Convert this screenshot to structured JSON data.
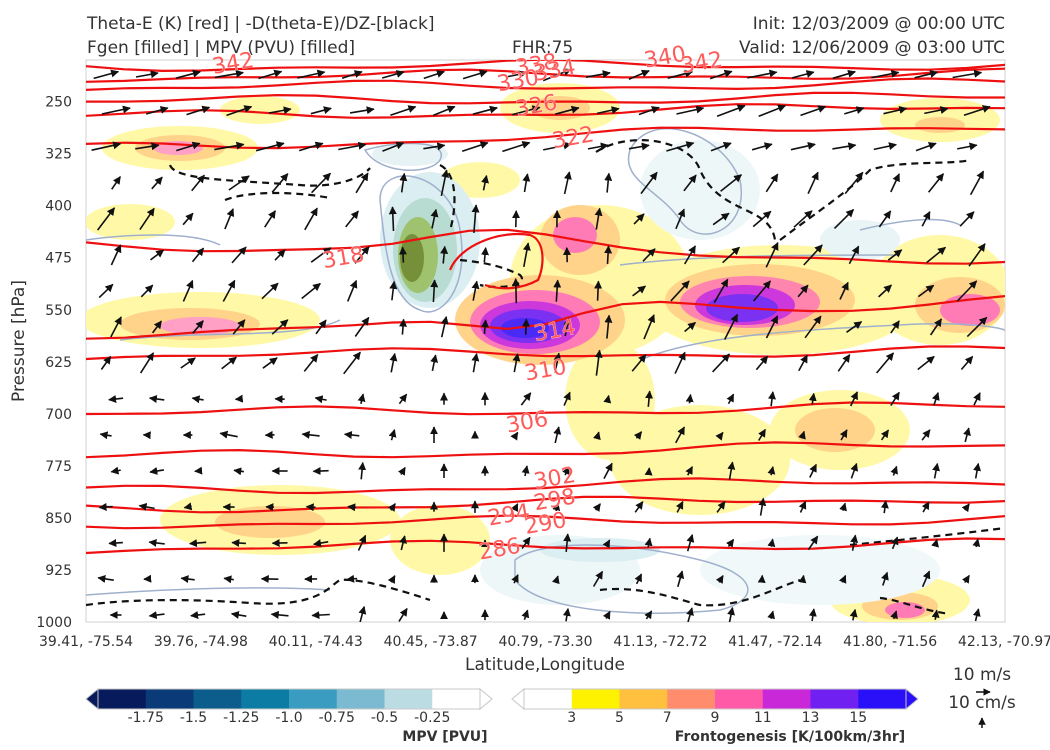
{
  "header": {
    "title_line1_left": "Theta-E (K) [red] | -D(theta-E)/DZ-[black]",
    "title_line2_left": "Fgen [filled] | MPV (PVU) [filled]",
    "fhr": "FHR:75",
    "init": "Init: 12/03/2009 @ 00:00 UTC",
    "valid": "Valid: 12/06/2009 @ 03:00 UTC"
  },
  "chart_data": {
    "type": "cross-section",
    "title": "Theta-E (K) [red] | -D(theta-E)/DZ-[black]",
    "subtitle": "Fgen [filled] | MPV (PVU) [filled]",
    "xlabel": "Latitude,Longitude",
    "ylabel": "Pressure [hPa]",
    "x_ticks": [
      "39.41, -75.54",
      "39.76, -74.98",
      "40.11, -74.43",
      "40.45, -73.87",
      "40.79, -73.30",
      "41.13, -72.72",
      "41.47, -72.14",
      "41.80, -71.56",
      "42.13, -70.97"
    ],
    "y_ticks": [
      250,
      325,
      400,
      475,
      550,
      625,
      700,
      775,
      850,
      925,
      1000
    ],
    "ylim": [
      1000,
      190
    ],
    "y_inverted": true,
    "theta_e_contours": [
      {
        "value": 342,
        "y_left": 199,
        "y_right": 197
      },
      {
        "value": 338,
        "y_left": 214,
        "y_right": 210
      },
      {
        "value": 334,
        "y_left": 230,
        "y_right": 224
      },
      {
        "value": 330,
        "y_left": 250,
        "y_right": 244
      },
      {
        "value": 326,
        "y_left": 272,
        "y_right": 258
      },
      {
        "value": 322,
        "y_left": 318,
        "y_right": 283
      },
      {
        "value": 318,
        "y_left": 456,
        "y_right": 478
      },
      {
        "value": 314,
        "y_left": 585,
        "y_right": 537
      },
      {
        "value": 310,
        "y_left": 616,
        "y_right": 610
      },
      {
        "value": 306,
        "y_left": 700,
        "y_right": 690
      },
      {
        "value": 302,
        "y_left": 763,
        "y_right": 745
      },
      {
        "value": 298,
        "y_left": 812,
        "y_right": 796
      },
      {
        "value": 294,
        "y_left": 838,
        "y_right": 820
      },
      {
        "value": 290,
        "y_left": 858,
        "y_right": 852
      },
      {
        "value": 286,
        "y_left": 894,
        "y_right": 887
      }
    ],
    "contour_labels": [
      {
        "text": "342",
        "x": 0.16,
        "p": 195
      },
      {
        "text": "338",
        "x": 0.49,
        "p": 197
      },
      {
        "text": "334",
        "x": 0.51,
        "p": 205
      },
      {
        "text": "340",
        "x": 0.63,
        "p": 186
      },
      {
        "text": "342",
        "x": 0.67,
        "p": 194
      },
      {
        "text": "330",
        "x": 0.47,
        "p": 220
      },
      {
        "text": "326",
        "x": 0.49,
        "p": 256
      },
      {
        "text": "322",
        "x": 0.53,
        "p": 302
      },
      {
        "text": "318",
        "x": 0.28,
        "p": 475
      },
      {
        "text": "314",
        "x": 0.51,
        "p": 580
      },
      {
        "text": "310",
        "x": 0.5,
        "p": 637
      },
      {
        "text": "306",
        "x": 0.48,
        "p": 712
      },
      {
        "text": "302",
        "x": 0.51,
        "p": 793
      },
      {
        "text": "298",
        "x": 0.51,
        "p": 824
      },
      {
        "text": "294",
        "x": 0.46,
        "p": 846
      },
      {
        "text": "290",
        "x": 0.5,
        "p": 858
      },
      {
        "text": "286",
        "x": 0.45,
        "p": 895
      }
    ],
    "frontogenesis_colorbar": {
      "label": "Frontogenesis [K/100km/3hr]",
      "ticks": [
        "3",
        "5",
        "7",
        "9",
        "11",
        "13",
        "15"
      ],
      "colors": [
        "#ffffff",
        "#fff200",
        "#ffc040",
        "#ff8c6c",
        "#ff5aa8",
        "#c828d8",
        "#7020f0",
        "#2a10f8"
      ]
    },
    "mpv_colorbar": {
      "label": "MPV [PVU]",
      "ticks": [
        "-1.75",
        "-1.5",
        "-1.25",
        "-1.0",
        "-0.75",
        "-0.5",
        "-0.25"
      ],
      "colors": [
        "#061a5c",
        "#0a3a78",
        "#0c5c8c",
        "#0c7ca4",
        "#3a9cc0",
        "#7cbad2",
        "#bcdce4",
        "#ffffff"
      ]
    },
    "vector_key": {
      "horizontal": "10 m/s",
      "vertical": "10 cm/s"
    }
  }
}
